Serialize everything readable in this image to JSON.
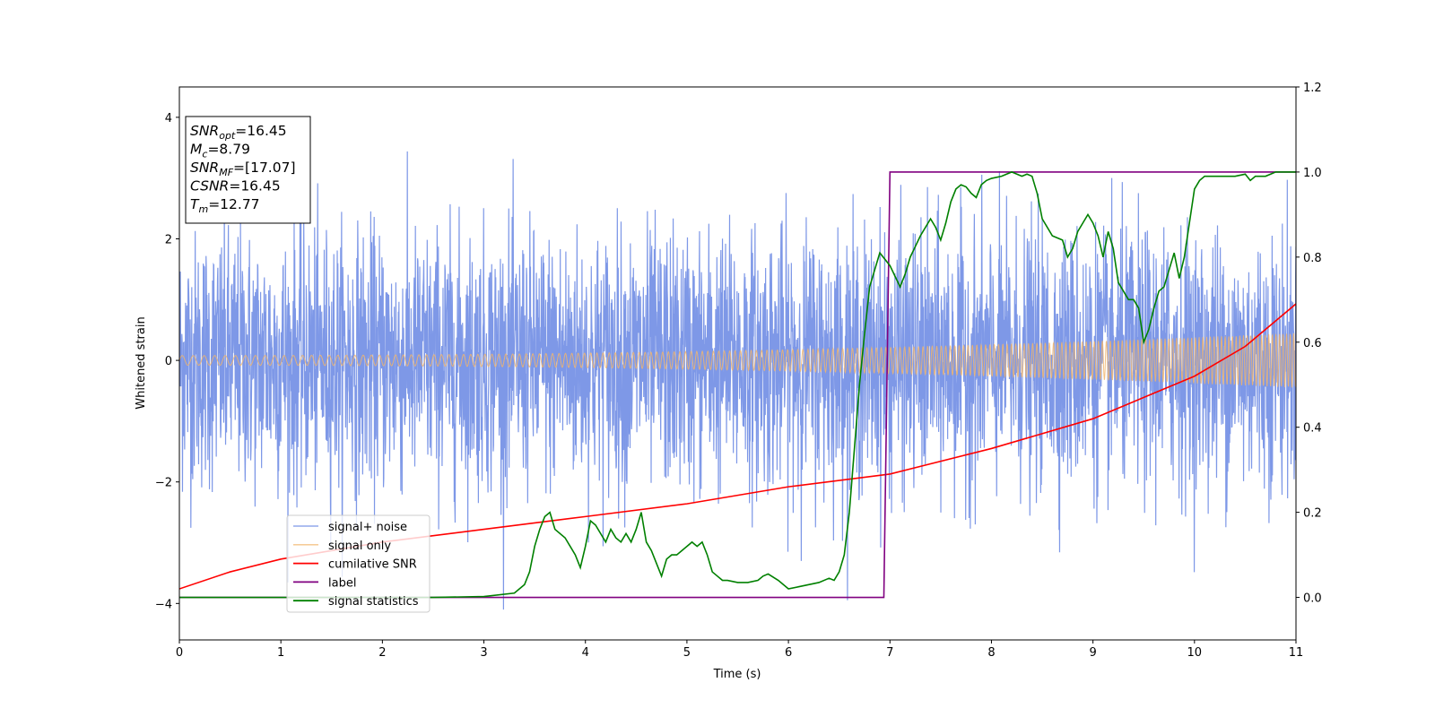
{
  "chart_data": {
    "type": "line",
    "xlabel": "Time (s)",
    "ylabel": "Whitened strain",
    "xlim": [
      0,
      11
    ],
    "ylim": [
      -4.6,
      4.5
    ],
    "y2lim": [
      -0.1,
      1.2
    ],
    "x_ticks": [
      "0",
      "1",
      "2",
      "3",
      "4",
      "5",
      "6",
      "7",
      "8",
      "9",
      "10",
      "11"
    ],
    "x_tick_values": [
      0,
      1,
      2,
      3,
      4,
      5,
      6,
      7,
      8,
      9,
      10,
      11
    ],
    "y_ticks": [
      "−4",
      "−2",
      "0",
      "2",
      "4"
    ],
    "y_tick_values": [
      -4,
      -2,
      0,
      2,
      4
    ],
    "y2_ticks": [
      "0.0",
      "0.2",
      "0.4",
      "0.6",
      "0.8",
      "1.0",
      "1.2"
    ],
    "y2_tick_values": [
      0,
      0.2,
      0.4,
      0.6,
      0.8,
      1.0,
      1.2
    ],
    "grid": false,
    "legend_position": "lower-left",
    "annotation": {
      "lines": [
        {
          "base": "SNR",
          "sub": "opt",
          "value": "=16.45"
        },
        {
          "base": "M",
          "sub": "c",
          "value": "=8.79"
        },
        {
          "base": "SNR",
          "sub": "MF",
          "value": "=[17.07]"
        },
        {
          "base": "CSNR",
          "sub": "",
          "value": "=16.45"
        },
        {
          "base": "T",
          "sub": "m",
          "value": "=12.77"
        }
      ]
    },
    "series": [
      {
        "name": "signal+ noise",
        "color": "#7792e6",
        "axis": "left",
        "kind": "noise",
        "approx_std": 1.05,
        "approx_range": [
          -4.1,
          4.1
        ]
      },
      {
        "name": "signal only",
        "color": "#f2b56b",
        "axis": "left",
        "kind": "chirp",
        "amplitude_start": 0.08,
        "amplitude_end": 0.45
      },
      {
        "name": "cumilative SNR",
        "color": "#ff0000",
        "axis": "right",
        "x": [
          0,
          0.5,
          1,
          2,
          3,
          4,
          5,
          6,
          7,
          8,
          9,
          10,
          10.5,
          11
        ],
        "y": [
          0.02,
          0.06,
          0.09,
          0.13,
          0.16,
          0.19,
          0.22,
          0.26,
          0.29,
          0.35,
          0.42,
          0.52,
          0.59,
          0.69
        ]
      },
      {
        "name": "label",
        "color": "#800080",
        "axis": "right",
        "x": [
          0,
          6.94,
          7.0,
          11
        ],
        "y": [
          0,
          0,
          1,
          1
        ]
      },
      {
        "name": "signal statistics",
        "color": "#008000",
        "axis": "right",
        "x": [
          0,
          0.5,
          1,
          1.5,
          2,
          2.5,
          3,
          3.3,
          3.4,
          3.45,
          3.5,
          3.55,
          3.6,
          3.65,
          3.7,
          3.8,
          3.9,
          3.95,
          4.0,
          4.05,
          4.1,
          4.15,
          4.2,
          4.25,
          4.3,
          4.35,
          4.4,
          4.45,
          4.5,
          4.55,
          4.6,
          4.65,
          4.7,
          4.75,
          4.8,
          4.85,
          4.9,
          4.95,
          5.0,
          5.05,
          5.1,
          5.15,
          5.2,
          5.25,
          5.3,
          5.35,
          5.4,
          5.5,
          5.6,
          5.7,
          5.75,
          5.8,
          5.9,
          6.0,
          6.1,
          6.2,
          6.3,
          6.4,
          6.45,
          6.5,
          6.55,
          6.6,
          6.65,
          6.7,
          6.75,
          6.8,
          6.85,
          6.9,
          7.0,
          7.1,
          7.15,
          7.2,
          7.3,
          7.4,
          7.45,
          7.5,
          7.55,
          7.6,
          7.65,
          7.7,
          7.75,
          7.8,
          7.85,
          7.9,
          7.95,
          8.0,
          8.1,
          8.2,
          8.3,
          8.35,
          8.4,
          8.45,
          8.5,
          8.6,
          8.7,
          8.75,
          8.8,
          8.85,
          8.9,
          8.95,
          9.0,
          9.05,
          9.1,
          9.15,
          9.2,
          9.25,
          9.3,
          9.35,
          9.4,
          9.45,
          9.5,
          9.55,
          9.6,
          9.65,
          9.7,
          9.75,
          9.8,
          9.85,
          9.9,
          9.95,
          10.0,
          10.05,
          10.1,
          10.2,
          10.3,
          10.4,
          10.5,
          10.55,
          10.6,
          10.7,
          10.8,
          10.9,
          11.0
        ],
        "y": [
          0,
          0,
          0,
          0,
          0,
          0,
          0.002,
          0.01,
          0.03,
          0.06,
          0.12,
          0.16,
          0.19,
          0.2,
          0.16,
          0.14,
          0.1,
          0.07,
          0.12,
          0.18,
          0.17,
          0.15,
          0.13,
          0.16,
          0.14,
          0.13,
          0.15,
          0.13,
          0.16,
          0.2,
          0.13,
          0.11,
          0.08,
          0.05,
          0.09,
          0.1,
          0.1,
          0.11,
          0.12,
          0.13,
          0.12,
          0.13,
          0.1,
          0.06,
          0.05,
          0.04,
          0.04,
          0.035,
          0.035,
          0.04,
          0.05,
          0.055,
          0.04,
          0.02,
          0.025,
          0.03,
          0.035,
          0.045,
          0.04,
          0.06,
          0.1,
          0.2,
          0.35,
          0.5,
          0.62,
          0.73,
          0.77,
          0.81,
          0.78,
          0.73,
          0.76,
          0.8,
          0.85,
          0.89,
          0.87,
          0.84,
          0.88,
          0.93,
          0.96,
          0.97,
          0.965,
          0.95,
          0.94,
          0.97,
          0.98,
          0.985,
          0.99,
          1.0,
          0.99,
          0.995,
          0.99,
          0.95,
          0.89,
          0.85,
          0.84,
          0.8,
          0.82,
          0.86,
          0.88,
          0.9,
          0.88,
          0.85,
          0.8,
          0.86,
          0.82,
          0.74,
          0.72,
          0.7,
          0.7,
          0.68,
          0.6,
          0.63,
          0.68,
          0.72,
          0.73,
          0.77,
          0.81,
          0.75,
          0.8,
          0.88,
          0.96,
          0.98,
          0.99,
          0.99,
          0.99,
          0.99,
          0.995,
          0.98,
          0.99,
          0.99,
          1.0,
          1.0,
          1.0
        ]
      }
    ]
  }
}
